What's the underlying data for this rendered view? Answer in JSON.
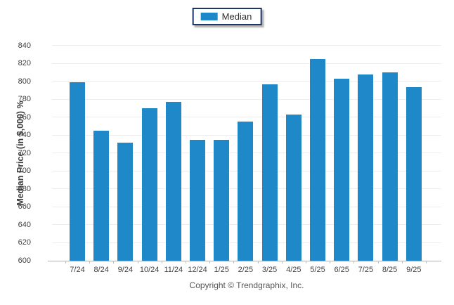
{
  "legend": {
    "items": [
      {
        "label": "Median",
        "color": "#1e88c9"
      }
    ]
  },
  "footer": {
    "copyright": "Copyright © Trendgraphix, Inc."
  },
  "chart_data": {
    "type": "bar",
    "title": "",
    "categories": [
      "7/24",
      "8/24",
      "9/24",
      "10/24",
      "11/24",
      "12/24",
      "1/25",
      "2/25",
      "3/25",
      "4/25",
      "5/25",
      "6/25",
      "7/25",
      "8/25",
      "9/25"
    ],
    "series": [
      {
        "name": "Median",
        "color": "#1e88c9",
        "values": [
          799,
          745,
          732,
          770,
          777,
          735,
          735,
          755,
          797,
          763,
          825,
          803,
          808,
          810,
          794
        ]
      }
    ],
    "xlabel": "",
    "ylabel": "Median Price (in $,000) %",
    "ylim": [
      600,
      840
    ],
    "yticks": [
      600,
      620,
      640,
      660,
      680,
      700,
      720,
      740,
      760,
      780,
      800,
      820,
      840
    ],
    "grid": true,
    "legend_position": "top-center",
    "colors": {
      "bar": "#1e88c9",
      "gridline": "#ededed",
      "axis_line": "#b0b0b0",
      "text": "#3f3f3f"
    }
  }
}
